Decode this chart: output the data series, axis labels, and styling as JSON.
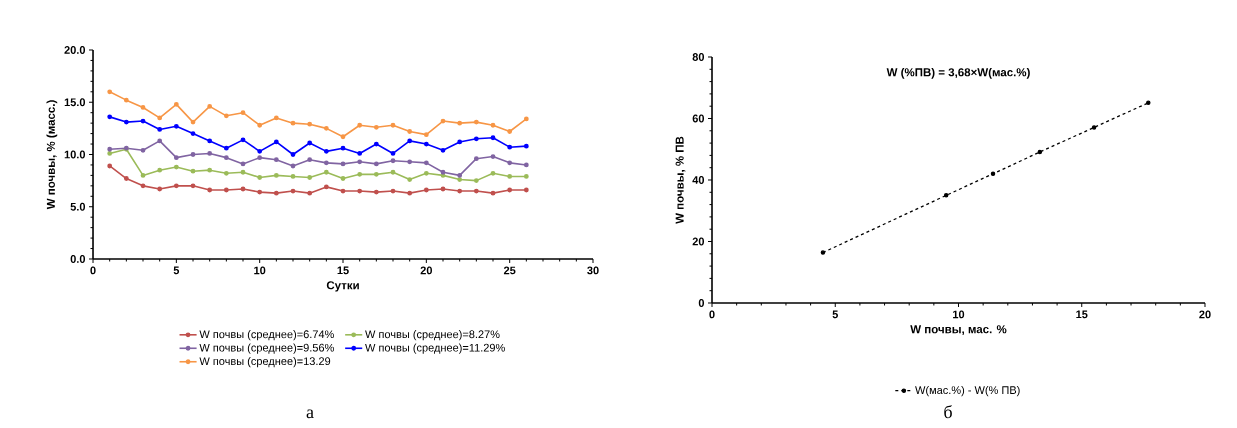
{
  "chart_data": [
    {
      "type": "line",
      "xlabel": "Сутки",
      "ylabel": "W почвы, % (масс.)",
      "xlim": [
        0,
        30
      ],
      "ylim": [
        0,
        20
      ],
      "xticks": [
        0,
        5,
        10,
        15,
        20,
        25,
        30
      ],
      "yticks": [
        {
          "value": 0,
          "label": "0.0"
        },
        {
          "value": 5,
          "label": "5.0"
        },
        {
          "value": 10,
          "label": "10.0"
        },
        {
          "value": 15,
          "label": "15.0"
        },
        {
          "value": 20,
          "label": "20.0"
        }
      ],
      "x": [
        1,
        2,
        3,
        4,
        5,
        6,
        7,
        8,
        9,
        10,
        11,
        12,
        13,
        14,
        15,
        16,
        17,
        18,
        19,
        20,
        21,
        22,
        23,
        24,
        25,
        26
      ],
      "series": [
        {
          "name": "W почвы (среднее)=6.74%",
          "color": "#c0504d",
          "values": [
            8.9,
            7.7,
            7.0,
            6.7,
            7.0,
            7.0,
            6.6,
            6.6,
            6.7,
            6.4,
            6.3,
            6.5,
            6.3,
            6.9,
            6.5,
            6.5,
            6.4,
            6.5,
            6.3,
            6.6,
            6.7,
            6.5,
            6.5,
            6.3,
            6.6,
            6.6
          ]
        },
        {
          "name": "W почвы (среднее)=8.27%",
          "color": "#9bbb59",
          "values": [
            10.1,
            10.5,
            8.0,
            8.5,
            8.8,
            8.4,
            8.5,
            8.2,
            8.3,
            7.8,
            8.0,
            7.9,
            7.8,
            8.3,
            7.7,
            8.1,
            8.1,
            8.3,
            7.6,
            8.2,
            8.0,
            7.6,
            7.5,
            8.2,
            7.9,
            7.9
          ]
        },
        {
          "name": "W почвы (среднее)=9.56%",
          "color": "#8064a2",
          "values": [
            10.5,
            10.6,
            10.4,
            11.3,
            9.7,
            10.0,
            10.1,
            9.7,
            9.1,
            9.7,
            9.5,
            8.9,
            9.5,
            9.2,
            9.1,
            9.3,
            9.1,
            9.4,
            9.3,
            9.2,
            8.3,
            8.0,
            9.6,
            9.8,
            9.2,
            9.0
          ]
        },
        {
          "name": "W почвы (среднее)=11.29%",
          "color": "#0000ff",
          "values": [
            13.6,
            13.1,
            13.2,
            12.4,
            12.7,
            12.0,
            11.3,
            10.6,
            11.4,
            10.3,
            11.2,
            10.0,
            11.1,
            10.3,
            10.6,
            10.1,
            11.0,
            10.1,
            11.3,
            11.0,
            10.4,
            11.2,
            11.5,
            11.6,
            10.7,
            10.8
          ]
        },
        {
          "name": "W почвы (среднее)=13.29",
          "color": "#f79646",
          "values": [
            16.0,
            15.2,
            14.5,
            13.5,
            14.8,
            13.1,
            14.6,
            13.7,
            14.0,
            12.8,
            13.5,
            13.0,
            12.9,
            12.5,
            11.7,
            12.8,
            12.6,
            12.8,
            12.2,
            11.9,
            13.2,
            13.0,
            13.1,
            12.8,
            12.2,
            13.4
          ]
        }
      ],
      "legend": "bottom",
      "marker": "circle",
      "annotations": [
        "а"
      ]
    },
    {
      "type": "line",
      "xlabel": "W почвы, мас. %",
      "ylabel": "W почвы, % ПВ",
      "xlim": [
        0,
        20
      ],
      "ylim": [
        0,
        80
      ],
      "xticks": [
        0,
        5,
        10,
        15,
        20
      ],
      "yticks": [
        0,
        20,
        40,
        60,
        80
      ],
      "series": [
        {
          "name": "W(мас.%) - W(% ПВ)",
          "color": "#000000",
          "x": [
            4.5,
            9.5,
            11.4,
            13.3,
            15.5,
            17.7
          ],
          "values": [
            16.4,
            35.0,
            42.0,
            49.1,
            57.1,
            65.1
          ]
        }
      ],
      "legend": "bottom",
      "marker": "circle",
      "line_style": "dashed",
      "annotations": [
        "W (%ПВ) = 3,68×W(мас.%)",
        "б"
      ]
    }
  ]
}
